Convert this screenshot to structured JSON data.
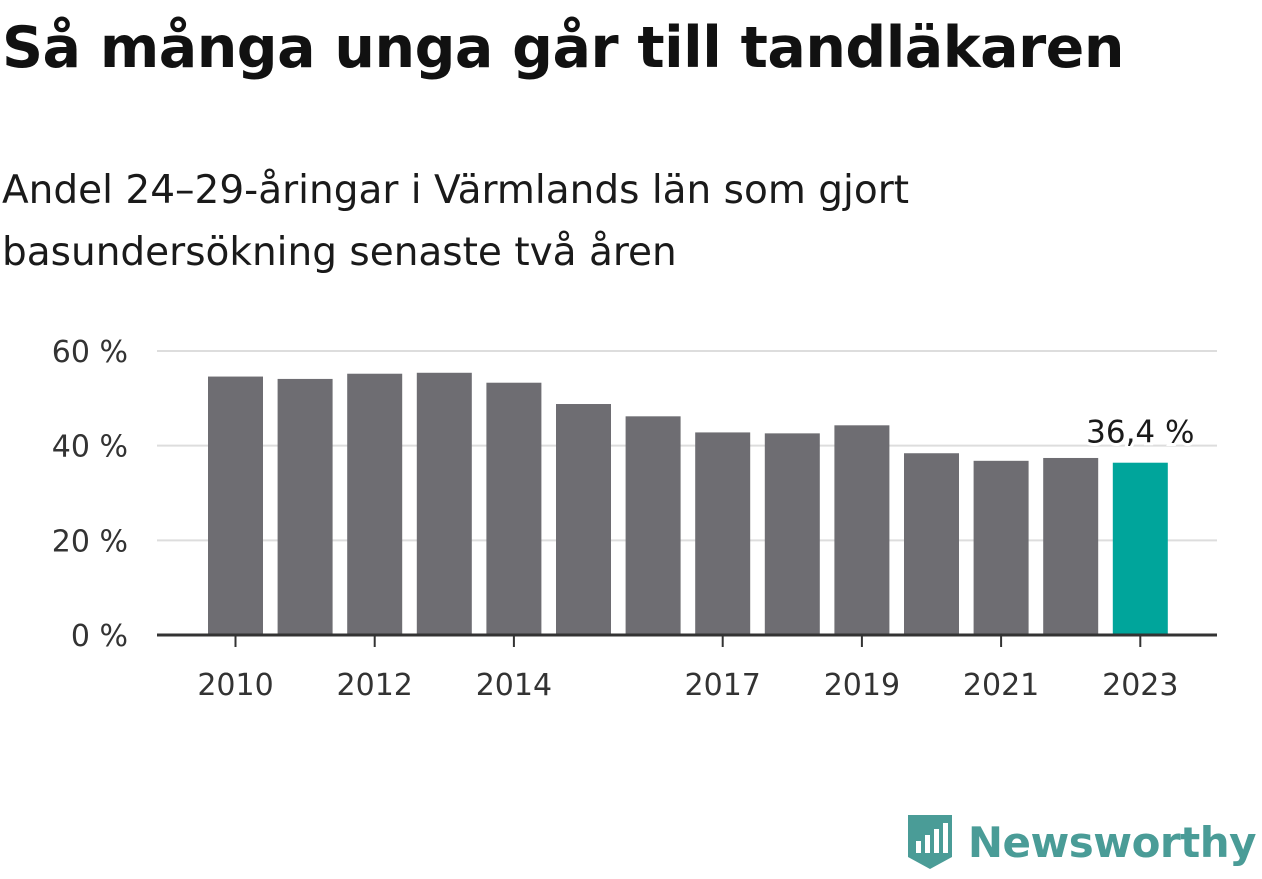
{
  "header": {
    "title": "Så många unga går till tandläkaren",
    "subtitle": "Andel 24–29-åringar i Värmlands län som gjort basundersökning senaste två åren"
  },
  "chart_data": {
    "type": "bar",
    "categories": [
      "2010",
      "2011",
      "2012",
      "2013",
      "2014",
      "2015",
      "2016",
      "2017",
      "2018",
      "2019",
      "2020",
      "2021",
      "2022",
      "2023"
    ],
    "values": [
      54.6,
      54.1,
      55.2,
      55.4,
      53.3,
      48.8,
      46.2,
      42.8,
      42.6,
      44.3,
      38.4,
      36.8,
      37.4,
      36.4
    ],
    "x_tick_labels": [
      "2010",
      "",
      "2012",
      "",
      "2014",
      "",
      "",
      "2017",
      "",
      "2019",
      "",
      "2021",
      "",
      "2023"
    ],
    "ylim": [
      0,
      60
    ],
    "y_ticks": [
      0,
      20,
      40,
      60
    ],
    "y_tick_labels": [
      "0 %",
      "20 %",
      "40 %",
      "60 %"
    ],
    "grid": true,
    "highlight_index": 13,
    "annotation": {
      "index": 13,
      "text": "36,4 %"
    },
    "colors": {
      "bar": "#6e6d72",
      "highlight": "#00a59b",
      "grid": "#dddddd",
      "axis": "#333333"
    }
  },
  "brand": {
    "name": "Newsworthy",
    "icon": "newsworthy-logo-icon",
    "color": "#4a9c97"
  }
}
